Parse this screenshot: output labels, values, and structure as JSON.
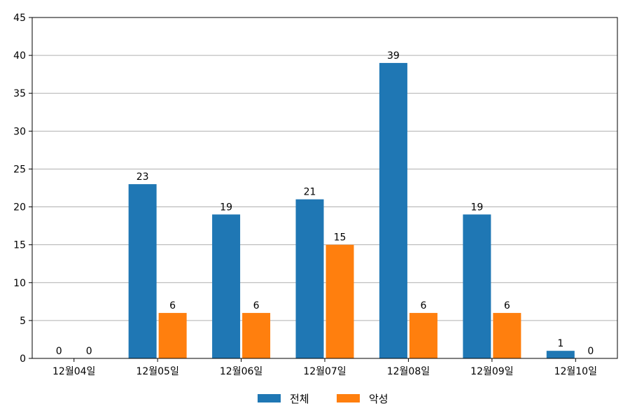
{
  "chart_data": {
    "type": "bar",
    "categories": [
      "12월04일",
      "12월05일",
      "12월06일",
      "12월07일",
      "12월08일",
      "12월09일",
      "12월10일"
    ],
    "series": [
      {
        "name": "전체",
        "color": "#1f77b4",
        "values": [
          0,
          23,
          19,
          21,
          39,
          19,
          1
        ]
      },
      {
        "name": "악성",
        "color": "#ff7f0e",
        "values": [
          0,
          6,
          6,
          15,
          6,
          6,
          0
        ]
      }
    ],
    "title": "",
    "xlabel": "",
    "ylabel": "",
    "ylim": [
      0,
      45
    ],
    "yticks": [
      0,
      5,
      10,
      15,
      20,
      25,
      30,
      35,
      40,
      45
    ],
    "grid": "horizontal",
    "legend_position": "bottom-center",
    "data_labels": true
  }
}
